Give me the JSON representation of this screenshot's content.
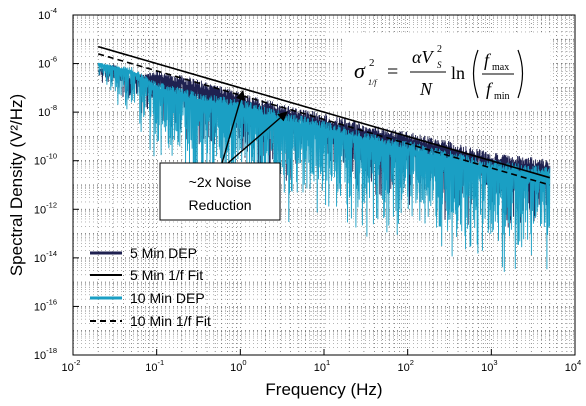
{
  "chart_data": {
    "type": "line",
    "xlabel": "Frequency (Hz)",
    "ylabel": "Spectral Density (V²/Hz)",
    "x_scale": "log",
    "y_scale": "log",
    "xlim": [
      0.01,
      10000
    ],
    "ylim": [
      1e-18,
      0.0001
    ],
    "grid": true,
    "x_ticks": [
      {
        "base": "10",
        "exp": "-2",
        "value": 0.01
      },
      {
        "base": "10",
        "exp": "-1",
        "value": 0.1
      },
      {
        "base": "10",
        "exp": "0",
        "value": 1
      },
      {
        "base": "10",
        "exp": "1",
        "value": 10
      },
      {
        "base": "10",
        "exp": "2",
        "value": 100
      },
      {
        "base": "10",
        "exp": "3",
        "value": 1000
      },
      {
        "base": "10",
        "exp": "4",
        "value": 10000
      }
    ],
    "y_ticks": [
      {
        "base": "10",
        "exp": "-18",
        "value": 1e-18
      },
      {
        "base": "10",
        "exp": "-16",
        "value": 1e-16
      },
      {
        "base": "10",
        "exp": "-14",
        "value": 1e-14
      },
      {
        "base": "10",
        "exp": "-12",
        "value": 1e-12
      },
      {
        "base": "10",
        "exp": "-10",
        "value": 1e-10
      },
      {
        "base": "10",
        "exp": "-8",
        "value": 1e-08
      },
      {
        "base": "10",
        "exp": "-6",
        "value": 1e-06
      },
      {
        "base": "10",
        "exp": "-4",
        "value": 0.0001
      }
    ],
    "legend_position": "bottom-left",
    "series": [
      {
        "name": "5 Min DEP",
        "style": "noisy-spectrum",
        "color": "#1f2150",
        "x": [
          0.02,
          0.03,
          0.05,
          0.1,
          0.3,
          1,
          3,
          10,
          30,
          100,
          300,
          1000,
          5000
        ],
        "y": [
          5e-07,
          8e-07,
          2e-07,
          3e-07,
          1e-07,
          3e-08,
          1e-08,
          4e-09,
          1.5e-09,
          7e-10,
          3e-10,
          1e-10,
          5e-11
        ]
      },
      {
        "name": "5 Min 1/f Fit",
        "style": "solid",
        "color": "#000000",
        "x": [
          0.02,
          5000
        ],
        "y": [
          5e-06,
          2e-11
        ]
      },
      {
        "name": "10 Min DEP",
        "style": "noisy-spectrum",
        "color": "#1a9fc4",
        "x": [
          0.02,
          0.03,
          0.05,
          0.1,
          0.3,
          1,
          3,
          10,
          30,
          100,
          300,
          1000,
          5000
        ],
        "y": [
          1e-06,
          7e-07,
          5e-07,
          1e-07,
          3e-08,
          1.5e-08,
          5e-09,
          2e-09,
          7e-10,
          3e-10,
          1.2e-10,
          5e-11,
          2.5e-11
        ]
      },
      {
        "name": "10 Min 1/f Fit",
        "style": "dashed",
        "color": "#000000",
        "x": [
          0.02,
          5000
        ],
        "y": [
          2.5e-06,
          1e-11
        ]
      }
    ],
    "annotations": [
      {
        "lines": [
          "~2x Noise",
          "Reduction"
        ],
        "points_to": [
          [
            1.0,
            1e-07
          ],
          [
            3.0,
            1e-08
          ]
        ]
      },
      {
        "equation": "σ²_1/f = (αV_S²/N) ln(f_max/f_min)"
      }
    ]
  }
}
